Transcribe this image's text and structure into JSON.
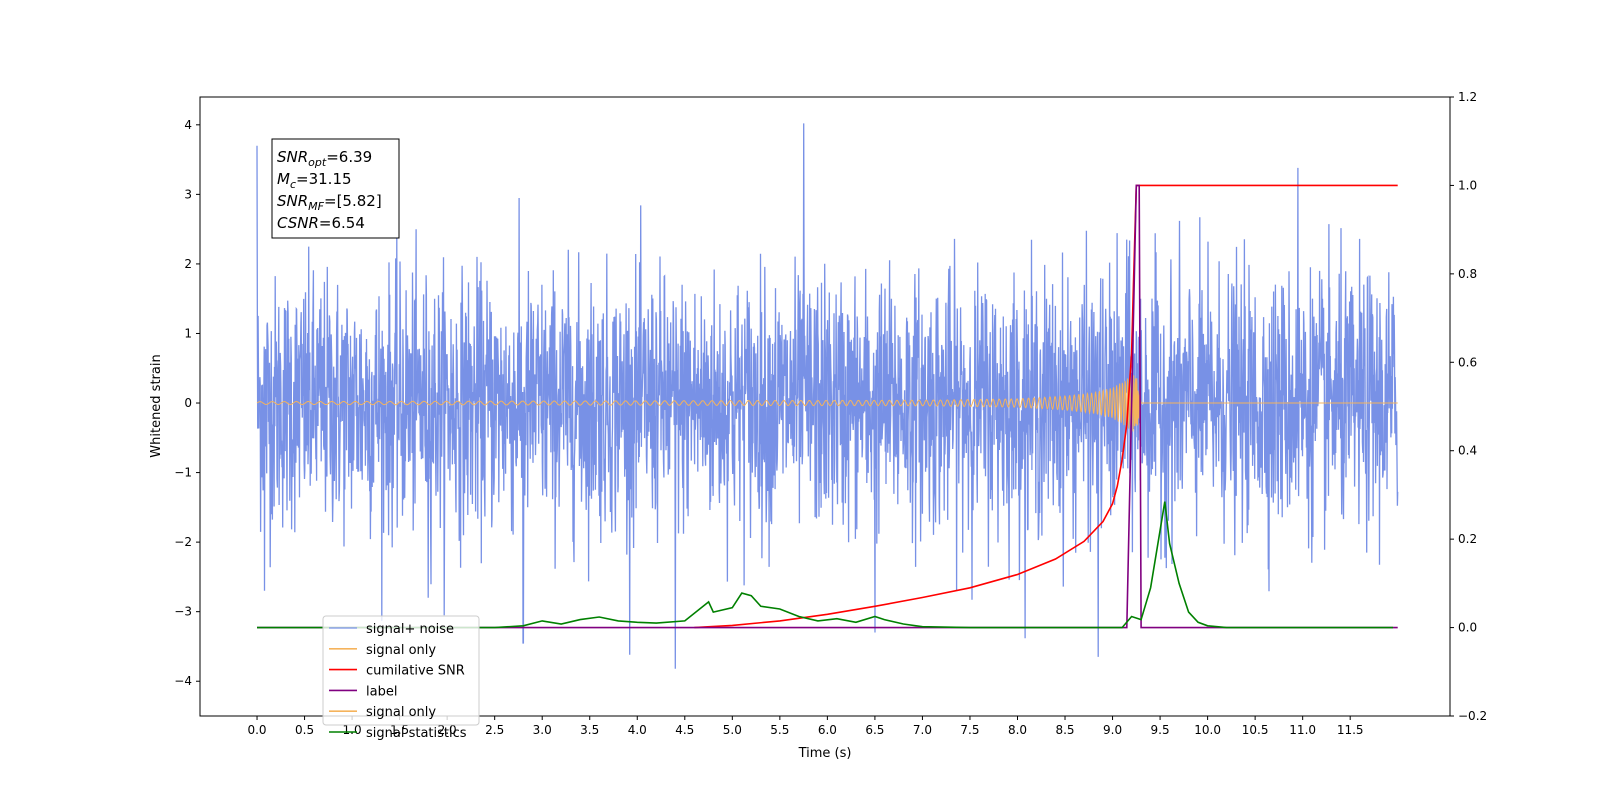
{
  "chart_data": {
    "type": "line",
    "title": "",
    "xlabel": "Time (s)",
    "ylabel": "Whitened strain",
    "ylabel_right": "",
    "xlim": [
      -0.6,
      12.55
    ],
    "ylim": [
      -4.5,
      4.4
    ],
    "ylim_right": [
      -0.2,
      1.2
    ],
    "x_ticks": [
      0.0,
      0.5,
      1.0,
      1.5,
      2.0,
      2.5,
      3.0,
      3.5,
      4.0,
      4.5,
      5.0,
      5.5,
      6.0,
      6.5,
      7.0,
      7.5,
      8.0,
      8.5,
      9.0,
      9.5,
      10.0,
      10.5,
      11.0,
      11.5
    ],
    "x_tick_labels": [
      "0.0",
      "0.5",
      "1.0",
      "1.5",
      "2.0",
      "2.5",
      "3.0",
      "3.5",
      "4.0",
      "4.5",
      "5.0",
      "5.5",
      "6.0",
      "6.5",
      "7.0",
      "7.5",
      "8.0",
      "8.5",
      "9.0",
      "9.5",
      "10.0",
      "10.5",
      "11.0",
      "11.5"
    ],
    "y_ticks": [
      -4,
      -3,
      -2,
      -1,
      0,
      1,
      2,
      3,
      4
    ],
    "y_tick_labels": [
      "−4",
      "−3",
      "−2",
      "−1",
      "0",
      "1",
      "2",
      "3",
      "4"
    ],
    "y_ticks_right": [
      -0.2,
      0.0,
      0.2,
      0.4,
      0.6,
      0.8,
      1.0,
      1.2
    ],
    "y_tick_labels_right": [
      "−0.2",
      "0.0",
      "0.2",
      "0.4",
      "0.6",
      "0.8",
      "1.0",
      "1.2"
    ],
    "grid": false,
    "legend_position": "lower-left",
    "annotation": {
      "lines": [
        {
          "base": "SNR",
          "sub": "opt",
          "rest": "=6.39"
        },
        {
          "base": "M",
          "sub": "c",
          "rest": "=31.15"
        },
        {
          "base": "SNR",
          "sub": "MF",
          "rest": "=[5.82]"
        },
        {
          "base": "CSNR",
          "sub": "",
          "rest": "=6.54"
        }
      ]
    },
    "series": [
      {
        "name": "signal+ noise",
        "color": "#7891e6",
        "axis": "left",
        "kind": "noise",
        "x_range": [
          0.0,
          12.0
        ],
        "amplitude_sigma": 0.9,
        "spikes": [
          [
            0.0,
            3.7
          ],
          [
            5.75,
            4.02
          ],
          [
            10.95,
            3.38
          ],
          [
            0.08,
            -2.7
          ],
          [
            1.8,
            -2.8
          ],
          [
            2.8,
            -3.45
          ],
          [
            4.4,
            -3.82
          ],
          [
            8.85,
            -3.65
          ],
          [
            6.5,
            -3.3
          ],
          [
            9.15,
            2.35
          ]
        ]
      },
      {
        "name": "signal only",
        "color": "#f5b35c",
        "axis": "left",
        "kind": "chirp",
        "x": [
          0.0,
          7.0,
          8.0,
          8.5,
          8.8,
          9.0,
          9.1,
          9.2,
          9.25,
          9.3,
          12.0
        ],
        "amplitude": [
          0.02,
          0.04,
          0.06,
          0.1,
          0.15,
          0.22,
          0.3,
          0.4,
          0.45,
          0.0,
          0.0
        ]
      },
      {
        "name": "cumilative SNR",
        "color": "#ff0000",
        "axis": "right",
        "x": [
          4.6,
          5.0,
          5.5,
          6.0,
          6.5,
          7.0,
          7.5,
          8.0,
          8.4,
          8.7,
          8.9,
          9.0,
          9.05,
          9.1,
          9.15,
          9.2,
          9.22,
          9.25,
          12.0
        ],
        "y": [
          0.0,
          0.005,
          0.015,
          0.03,
          0.048,
          0.068,
          0.09,
          0.12,
          0.155,
          0.195,
          0.24,
          0.28,
          0.32,
          0.38,
          0.46,
          0.62,
          0.78,
          1.0,
          1.0
        ]
      },
      {
        "name": "label",
        "color": "#800080",
        "axis": "right",
        "x": [
          0.0,
          9.15,
          9.25,
          9.28,
          9.3,
          12.0
        ],
        "y": [
          0.0,
          0.0,
          1.0,
          1.0,
          0.0,
          0.0
        ]
      },
      {
        "name": "signal only",
        "color": "#f5b35c",
        "axis": "left",
        "hidden": true,
        "x": [],
        "y": []
      },
      {
        "name": "signal statistics",
        "color": "#008000",
        "axis": "right",
        "x": [
          0.0,
          2.5,
          2.8,
          3.0,
          3.2,
          3.4,
          3.6,
          3.8,
          4.0,
          4.2,
          4.5,
          4.75,
          4.8,
          5.0,
          5.1,
          5.2,
          5.3,
          5.5,
          5.7,
          5.9,
          6.1,
          6.3,
          6.5,
          6.6,
          6.8,
          7.0,
          7.5,
          9.1,
          9.2,
          9.3,
          9.4,
          9.5,
          9.55,
          9.6,
          9.7,
          9.8,
          9.9,
          10.0,
          10.2,
          11.95
        ],
        "y": [
          0.0,
          0.0,
          0.004,
          0.015,
          0.008,
          0.018,
          0.024,
          0.015,
          0.012,
          0.01,
          0.015,
          0.058,
          0.035,
          0.045,
          0.078,
          0.072,
          0.048,
          0.042,
          0.025,
          0.015,
          0.02,
          0.012,
          0.025,
          0.018,
          0.008,
          0.002,
          0.0,
          0.0,
          0.025,
          0.018,
          0.09,
          0.22,
          0.285,
          0.19,
          0.1,
          0.035,
          0.012,
          0.004,
          0.0,
          0.0
        ]
      }
    ]
  }
}
